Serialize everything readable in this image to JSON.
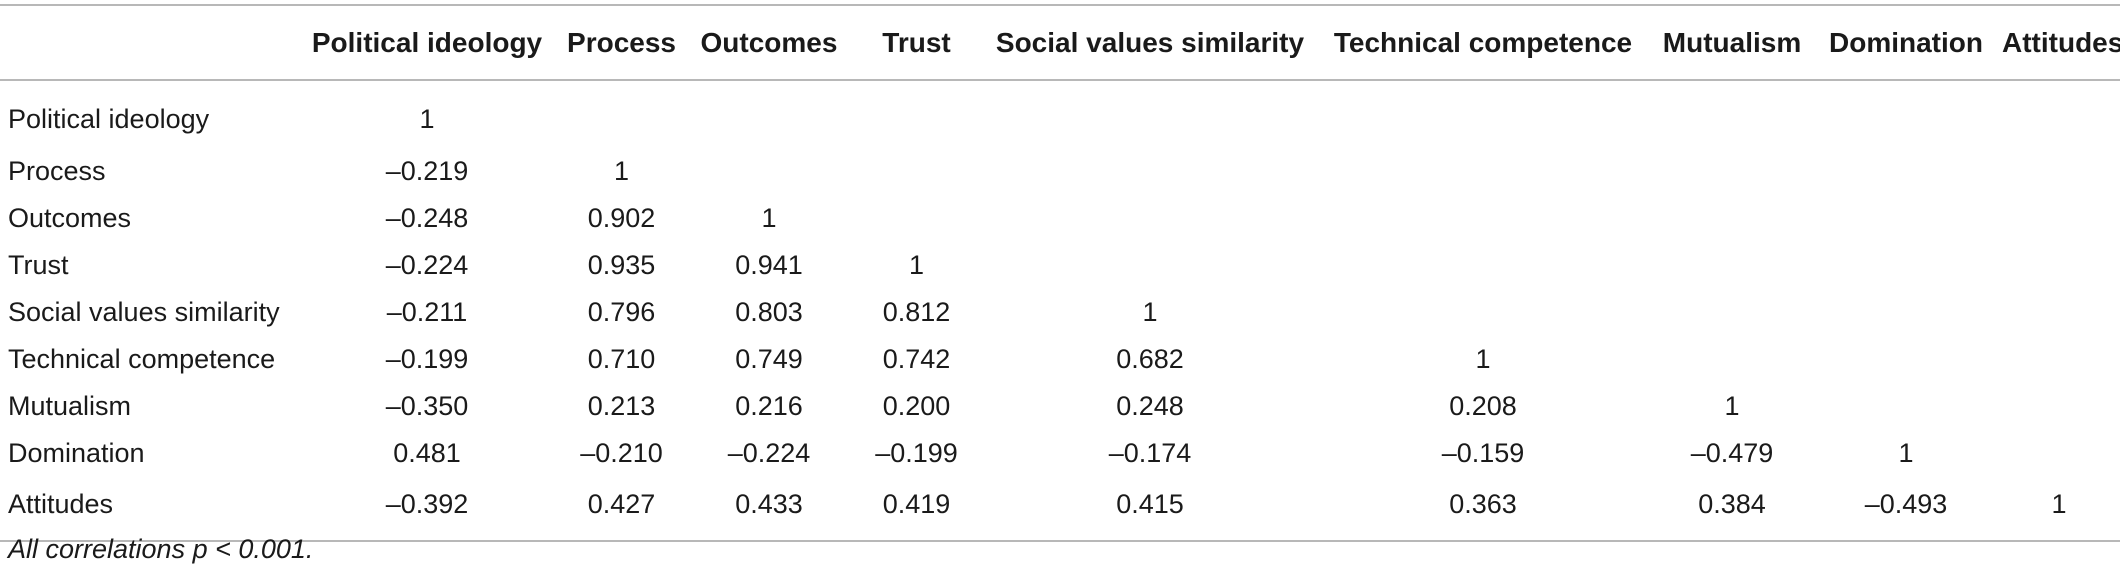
{
  "table": {
    "columns": [
      "Political ideology",
      "Process",
      "Outcomes",
      "Trust",
      "Social values similarity",
      "Technical competence",
      "Mutualism",
      "Domination",
      "Attitudes"
    ],
    "rows": [
      {
        "label": "Political ideology",
        "values": [
          "1",
          "",
          "",
          "",
          "",
          "",
          "",
          "",
          ""
        ]
      },
      {
        "label": "Process",
        "values": [
          "–0.219",
          "1",
          "",
          "",
          "",
          "",
          "",
          "",
          ""
        ]
      },
      {
        "label": "Outcomes",
        "values": [
          "–0.248",
          "0.902",
          "1",
          "",
          "",
          "",
          "",
          "",
          ""
        ]
      },
      {
        "label": "Trust",
        "values": [
          "–0.224",
          "0.935",
          "0.941",
          "1",
          "",
          "",
          "",
          "",
          ""
        ]
      },
      {
        "label": "Social values similarity",
        "values": [
          "–0.211",
          "0.796",
          "0.803",
          "0.812",
          "1",
          "",
          "",
          "",
          ""
        ]
      },
      {
        "label": "Technical competence",
        "values": [
          "–0.199",
          "0.710",
          "0.749",
          "0.742",
          "0.682",
          "1",
          "",
          "",
          ""
        ]
      },
      {
        "label": "Mutualism",
        "values": [
          "–0.350",
          "0.213",
          "0.216",
          "0.200",
          "0.248",
          "0.208",
          "1",
          "",
          ""
        ]
      },
      {
        "label": "Domination",
        "values": [
          "0.481",
          "–0.210",
          "–0.224",
          "–0.199",
          "–0.174",
          "–0.159",
          "–0.479",
          "1",
          ""
        ]
      },
      {
        "label": "Attitudes",
        "values": [
          "–0.392",
          "0.427",
          "0.433",
          "0.419",
          "0.415",
          "0.363",
          "0.384",
          "–0.493",
          "1"
        ]
      }
    ]
  },
  "note": {
    "text": "All correlations p < 0.001."
  }
}
